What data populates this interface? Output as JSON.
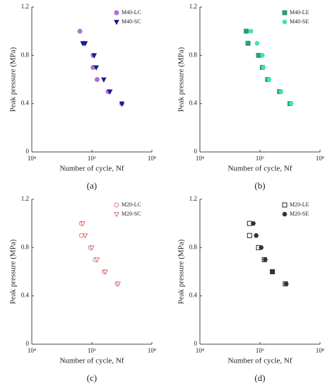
{
  "chart_data": [
    {
      "type": "scatter",
      "caption": "(a)",
      "xlabel": "Number of cycle, Nf",
      "ylabel": "Peak pressure (MPa)",
      "xscale": "log",
      "xlim": [
        10000,
        100000000
      ],
      "xticks": [
        {
          "value": 10000,
          "label": "10⁴"
        },
        {
          "value": 1000000,
          "label": "10⁶"
        },
        {
          "value": 100000000,
          "label": "10⁸"
        }
      ],
      "ylim": [
        0,
        1.2
      ],
      "yticks": [
        0,
        0.4,
        0.8,
        1.2
      ],
      "legend": "upper right",
      "series": [
        {
          "name": "M40-LC",
          "color": "#b070d0",
          "marker": "circle",
          "filled": true,
          "x": [
            400000,
            550000,
            1100000,
            1100000,
            1500000,
            3500000,
            10000000
          ],
          "values": [
            1.0,
            0.9,
            0.8,
            0.7,
            0.6,
            0.5,
            0.4
          ]
        },
        {
          "name": "M40-SC",
          "color": "#1a1a8c",
          "marker": "triangle-down",
          "filled": true,
          "x": [
            500000,
            600000,
            1200000,
            1400000,
            2500000,
            4000000,
            10000000
          ],
          "values": [
            0.9,
            0.9,
            0.8,
            0.7,
            0.6,
            0.5,
            0.4
          ]
        }
      ]
    },
    {
      "type": "scatter",
      "caption": "(b)",
      "xlabel": "Number of cycle, Nf",
      "ylabel": "Peak pressure (MPa)",
      "xscale": "log",
      "xlim": [
        10000,
        100000000
      ],
      "xticks": [
        {
          "value": 10000,
          "label": "10⁴"
        },
        {
          "value": 1000000,
          "label": "10⁶"
        },
        {
          "value": 100000000,
          "label": "10⁸"
        }
      ],
      "ylim": [
        0,
        1.2
      ],
      "yticks": [
        0,
        0.4,
        0.8,
        1.2
      ],
      "legend": "upper right",
      "series": [
        {
          "name": "M40-LE",
          "color": "#2e9e6e",
          "marker": "square",
          "filled": true,
          "x": [
            350000,
            400000,
            900000,
            1200000,
            1800000,
            4500000,
            10000000
          ],
          "values": [
            1.0,
            0.9,
            0.8,
            0.7,
            0.6,
            0.5,
            0.4
          ]
        },
        {
          "name": "M40-SE",
          "color": "#40e0c0",
          "marker": "hexagon",
          "filled": true,
          "x": [
            500000,
            800000,
            1200000,
            1300000,
            2000000,
            5000000,
            11000000
          ],
          "values": [
            1.0,
            0.9,
            0.8,
            0.7,
            0.6,
            0.5,
            0.4
          ]
        }
      ]
    },
    {
      "type": "scatter",
      "caption": "(c)",
      "xlabel": "Number of cycle, Nf",
      "ylabel": "Peak pressure (MPa)",
      "xscale": "log",
      "xlim": [
        10000,
        100000000
      ],
      "xticks": [
        {
          "value": 10000,
          "label": "10⁴"
        },
        {
          "value": 1000000,
          "label": "10⁶"
        },
        {
          "value": 100000000,
          "label": "10⁸"
        }
      ],
      "ylim": [
        0,
        1.2
      ],
      "yticks": [
        0,
        0.4,
        0.8,
        1.2
      ],
      "legend": "upper right",
      "series": [
        {
          "name": "M20-LC",
          "color": "#e08080",
          "marker": "circle",
          "filled": false,
          "x": [
            450000,
            450000,
            900000,
            1300000,
            2600000,
            7000000
          ],
          "values": [
            1.0,
            0.9,
            0.8,
            0.7,
            0.6,
            0.5
          ]
        },
        {
          "name": "M20-SC",
          "color": "#d07070",
          "marker": "triangle-down",
          "filled": false,
          "x": [
            500000,
            600000,
            1000000,
            1500000,
            2800000,
            7500000
          ],
          "values": [
            1.0,
            0.9,
            0.8,
            0.7,
            0.6,
            0.5
          ]
        }
      ]
    },
    {
      "type": "scatter",
      "caption": "(d)",
      "xlabel": "Number of cycle, Nf",
      "ylabel": "Peak pressure (MPa)",
      "xscale": "log",
      "xlim": [
        10000,
        100000000
      ],
      "xticks": [
        {
          "value": 10000,
          "label": "10⁴"
        },
        {
          "value": 1000000,
          "label": "10⁶"
        },
        {
          "value": 100000000,
          "label": "10⁸"
        }
      ],
      "ylim": [
        0,
        1.2
      ],
      "yticks": [
        0,
        0.4,
        0.8,
        1.2
      ],
      "legend": "upper right",
      "series": [
        {
          "name": "M20-LE",
          "color": "#222222",
          "marker": "square",
          "filled": false,
          "x": [
            450000,
            450000,
            900000,
            1400000,
            2600000,
            7000000
          ],
          "values": [
            1.0,
            0.9,
            0.8,
            0.7,
            0.6,
            0.5
          ]
        },
        {
          "name": "M20-SE",
          "color": "#333333",
          "marker": "hexagon",
          "filled": true,
          "x": [
            600000,
            750000,
            1100000,
            1500000,
            2600000,
            7500000
          ],
          "values": [
            1.0,
            0.9,
            0.8,
            0.7,
            0.6,
            0.5
          ]
        }
      ]
    }
  ]
}
